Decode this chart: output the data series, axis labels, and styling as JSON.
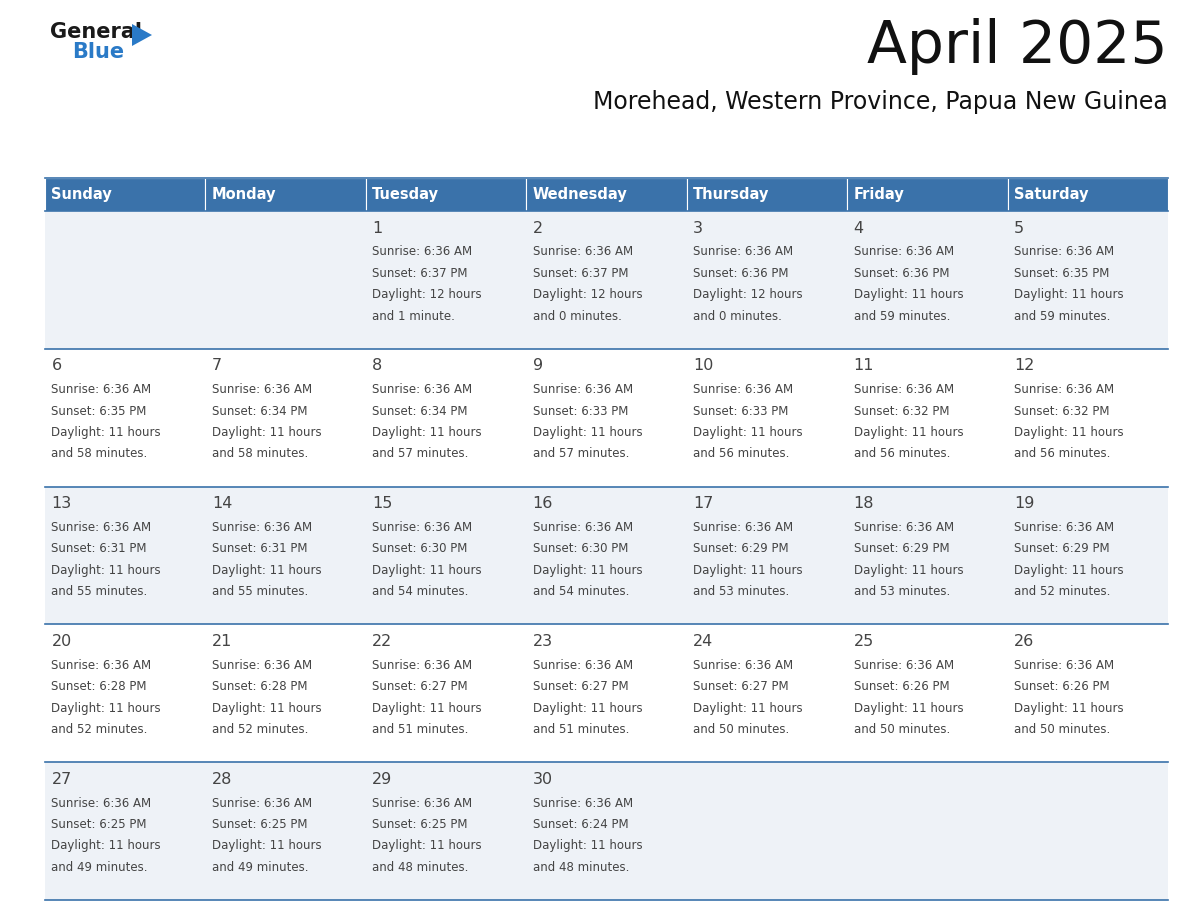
{
  "title": "April 2025",
  "subtitle": "Morehead, Western Province, Papua New Guinea",
  "days_of_week": [
    "Sunday",
    "Monday",
    "Tuesday",
    "Wednesday",
    "Thursday",
    "Friday",
    "Saturday"
  ],
  "header_bg_color": "#3A72AA",
  "header_text_color": "#FFFFFF",
  "cell_bg_light": "#EEF2F7",
  "cell_bg_white": "#FFFFFF",
  "row_line_color": "#3A72AA",
  "text_color": "#444444",
  "calendar": [
    [
      {
        "day": "",
        "sunrise": "",
        "sunset": "",
        "daylight": ""
      },
      {
        "day": "",
        "sunrise": "",
        "sunset": "",
        "daylight": ""
      },
      {
        "day": "1",
        "sunrise": "6:36 AM",
        "sunset": "6:37 PM",
        "daylight": "12 hours and 1 minute."
      },
      {
        "day": "2",
        "sunrise": "6:36 AM",
        "sunset": "6:37 PM",
        "daylight": "12 hours and 0 minutes."
      },
      {
        "day": "3",
        "sunrise": "6:36 AM",
        "sunset": "6:36 PM",
        "daylight": "12 hours and 0 minutes."
      },
      {
        "day": "4",
        "sunrise": "6:36 AM",
        "sunset": "6:36 PM",
        "daylight": "11 hours and 59 minutes."
      },
      {
        "day": "5",
        "sunrise": "6:36 AM",
        "sunset": "6:35 PM",
        "daylight": "11 hours and 59 minutes."
      }
    ],
    [
      {
        "day": "6",
        "sunrise": "6:36 AM",
        "sunset": "6:35 PM",
        "daylight": "11 hours and 58 minutes."
      },
      {
        "day": "7",
        "sunrise": "6:36 AM",
        "sunset": "6:34 PM",
        "daylight": "11 hours and 58 minutes."
      },
      {
        "day": "8",
        "sunrise": "6:36 AM",
        "sunset": "6:34 PM",
        "daylight": "11 hours and 57 minutes."
      },
      {
        "day": "9",
        "sunrise": "6:36 AM",
        "sunset": "6:33 PM",
        "daylight": "11 hours and 57 minutes."
      },
      {
        "day": "10",
        "sunrise": "6:36 AM",
        "sunset": "6:33 PM",
        "daylight": "11 hours and 56 minutes."
      },
      {
        "day": "11",
        "sunrise": "6:36 AM",
        "sunset": "6:32 PM",
        "daylight": "11 hours and 56 minutes."
      },
      {
        "day": "12",
        "sunrise": "6:36 AM",
        "sunset": "6:32 PM",
        "daylight": "11 hours and 56 minutes."
      }
    ],
    [
      {
        "day": "13",
        "sunrise": "6:36 AM",
        "sunset": "6:31 PM",
        "daylight": "11 hours and 55 minutes."
      },
      {
        "day": "14",
        "sunrise": "6:36 AM",
        "sunset": "6:31 PM",
        "daylight": "11 hours and 55 minutes."
      },
      {
        "day": "15",
        "sunrise": "6:36 AM",
        "sunset": "6:30 PM",
        "daylight": "11 hours and 54 minutes."
      },
      {
        "day": "16",
        "sunrise": "6:36 AM",
        "sunset": "6:30 PM",
        "daylight": "11 hours and 54 minutes."
      },
      {
        "day": "17",
        "sunrise": "6:36 AM",
        "sunset": "6:29 PM",
        "daylight": "11 hours and 53 minutes."
      },
      {
        "day": "18",
        "sunrise": "6:36 AM",
        "sunset": "6:29 PM",
        "daylight": "11 hours and 53 minutes."
      },
      {
        "day": "19",
        "sunrise": "6:36 AM",
        "sunset": "6:29 PM",
        "daylight": "11 hours and 52 minutes."
      }
    ],
    [
      {
        "day": "20",
        "sunrise": "6:36 AM",
        "sunset": "6:28 PM",
        "daylight": "11 hours and 52 minutes."
      },
      {
        "day": "21",
        "sunrise": "6:36 AM",
        "sunset": "6:28 PM",
        "daylight": "11 hours and 52 minutes."
      },
      {
        "day": "22",
        "sunrise": "6:36 AM",
        "sunset": "6:27 PM",
        "daylight": "11 hours and 51 minutes."
      },
      {
        "day": "23",
        "sunrise": "6:36 AM",
        "sunset": "6:27 PM",
        "daylight": "11 hours and 51 minutes."
      },
      {
        "day": "24",
        "sunrise": "6:36 AM",
        "sunset": "6:27 PM",
        "daylight": "11 hours and 50 minutes."
      },
      {
        "day": "25",
        "sunrise": "6:36 AM",
        "sunset": "6:26 PM",
        "daylight": "11 hours and 50 minutes."
      },
      {
        "day": "26",
        "sunrise": "6:36 AM",
        "sunset": "6:26 PM",
        "daylight": "11 hours and 50 minutes."
      }
    ],
    [
      {
        "day": "27",
        "sunrise": "6:36 AM",
        "sunset": "6:25 PM",
        "daylight": "11 hours and 49 minutes."
      },
      {
        "day": "28",
        "sunrise": "6:36 AM",
        "sunset": "6:25 PM",
        "daylight": "11 hours and 49 minutes."
      },
      {
        "day": "29",
        "sunrise": "6:36 AM",
        "sunset": "6:25 PM",
        "daylight": "11 hours and 48 minutes."
      },
      {
        "day": "30",
        "sunrise": "6:36 AM",
        "sunset": "6:24 PM",
        "daylight": "11 hours and 48 minutes."
      },
      {
        "day": "",
        "sunrise": "",
        "sunset": "",
        "daylight": ""
      },
      {
        "day": "",
        "sunrise": "",
        "sunset": "",
        "daylight": ""
      },
      {
        "day": "",
        "sunrise": "",
        "sunset": "",
        "daylight": ""
      }
    ]
  ],
  "logo_general_color": "#1a1a1a",
  "logo_blue_color": "#2A7AC7",
  "logo_triangle_color": "#2A7AC7"
}
